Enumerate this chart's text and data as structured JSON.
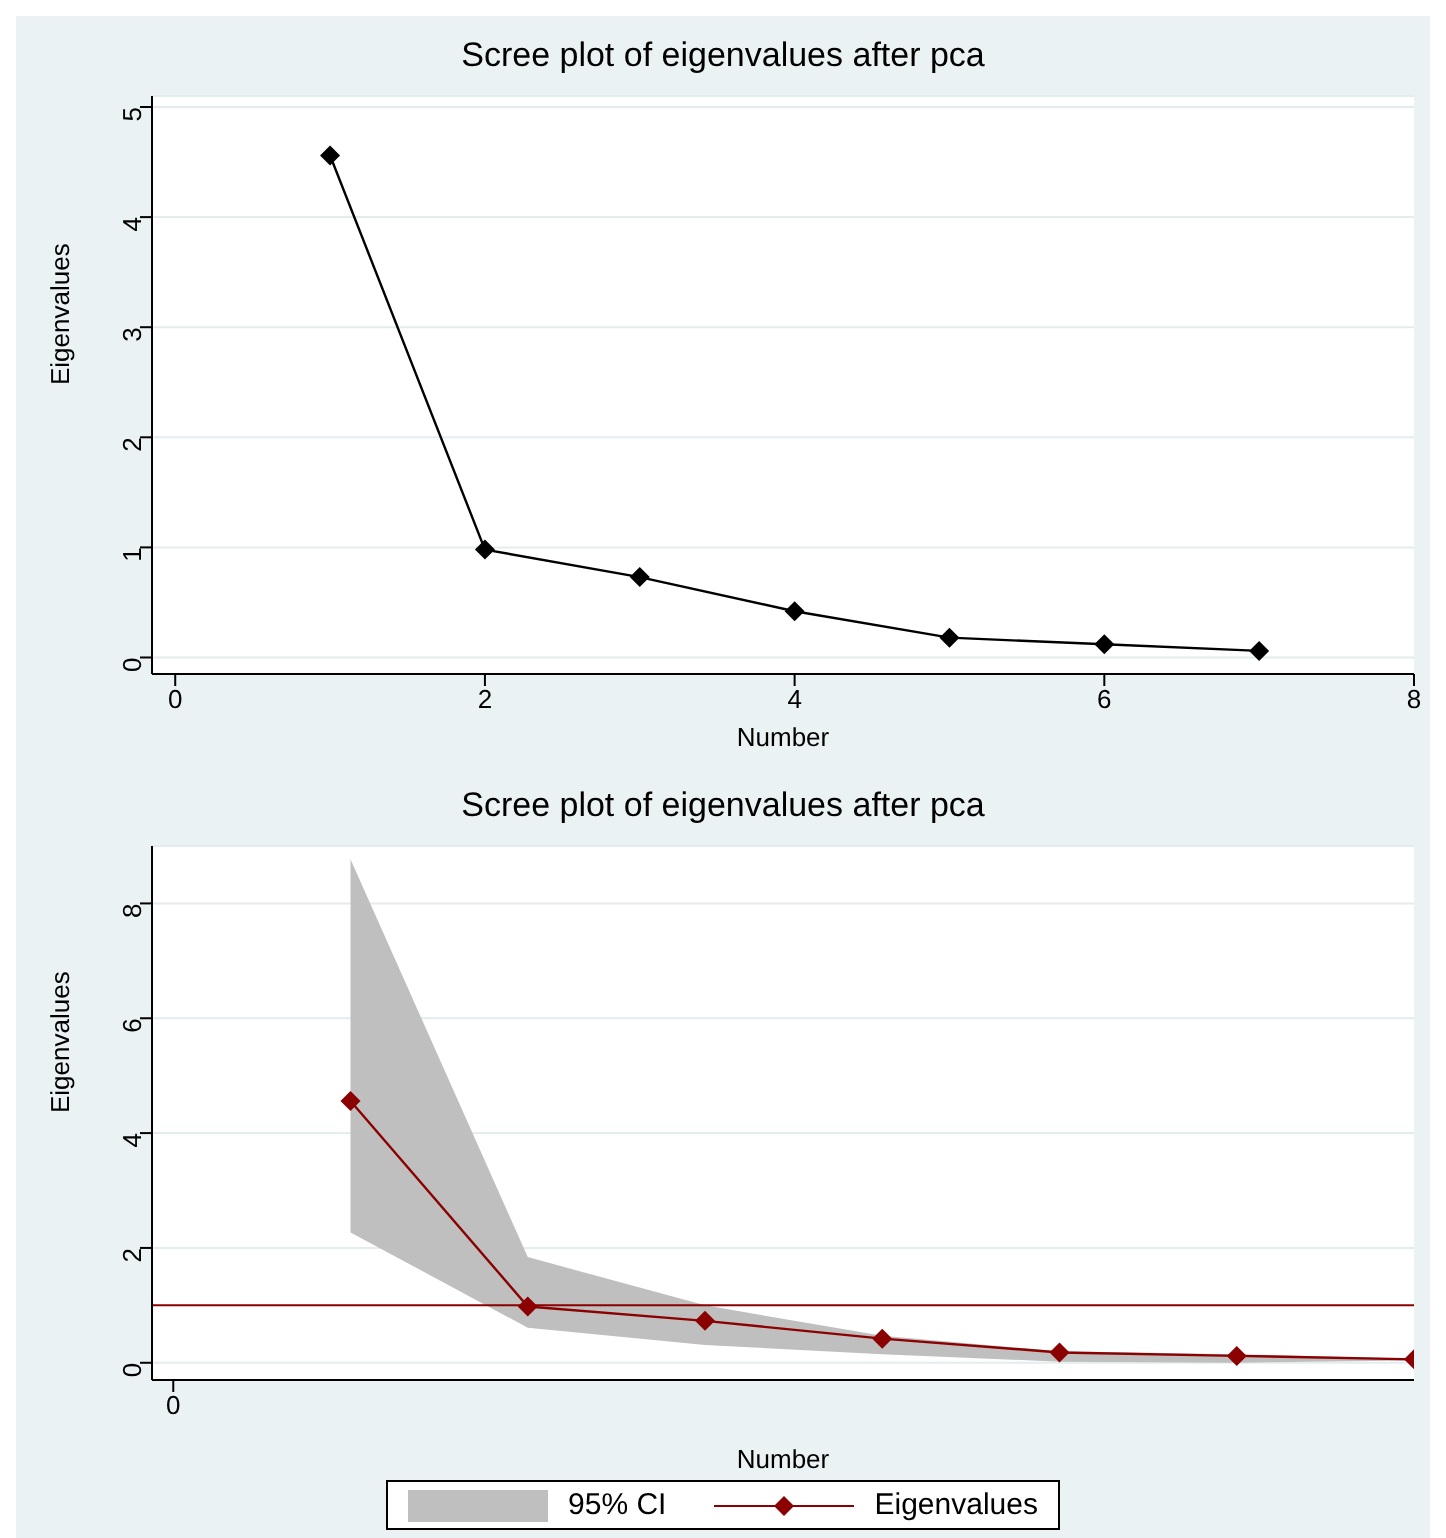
{
  "chart_data": [
    {
      "type": "line",
      "title": "Scree plot of eigenvalues after pca",
      "xlabel": "Number",
      "ylabel": "Eigenvalues",
      "x": [
        1,
        2,
        3,
        4,
        5,
        6,
        7
      ],
      "series": [
        {
          "color": "#000000",
          "values": [
            4.56,
            0.98,
            0.73,
            0.42,
            0.18,
            0.12,
            0.06
          ]
        }
      ],
      "xlim": [
        -0.15,
        8
      ],
      "xticks": [
        0,
        2,
        4,
        6,
        8
      ],
      "ylim": [
        -0.15,
        5.1
      ],
      "yticks": [
        0,
        1,
        2,
        3,
        4,
        5
      ],
      "grid": "y",
      "marker": "diamond",
      "legend": false
    },
    {
      "type": "line",
      "title": "Scree plot of eigenvalues after pca",
      "xlabel": "Number",
      "ylabel": "Eigenvalues",
      "categories": [
        null,
        null,
        null,
        null,
        null,
        null,
        null
      ],
      "series": [
        {
          "name": "Eigenvalues",
          "color": "#8b0000",
          "values": [
            4.56,
            0.98,
            0.73,
            0.42,
            0.18,
            0.12,
            0.06
          ],
          "lower": [
            2.27,
            0.61,
            0.31,
            0.15,
            0.02,
            0.0,
            0.04
          ],
          "upper": [
            8.77,
            1.84,
            1.0,
            0.47,
            0.2,
            0.15,
            0.07
          ]
        }
      ],
      "annotations": [
        "0",
        "95% CI"
      ],
      "ylim": [
        -0.3,
        9
      ],
      "yticks": [
        0,
        2,
        4,
        6,
        8
      ],
      "grid": "y",
      "marker": "diamond",
      "legend": "bottom",
      "ref_lines": [
        {
          "axis": "y",
          "value": 1,
          "color": "#8b0000"
        }
      ]
    }
  ]
}
